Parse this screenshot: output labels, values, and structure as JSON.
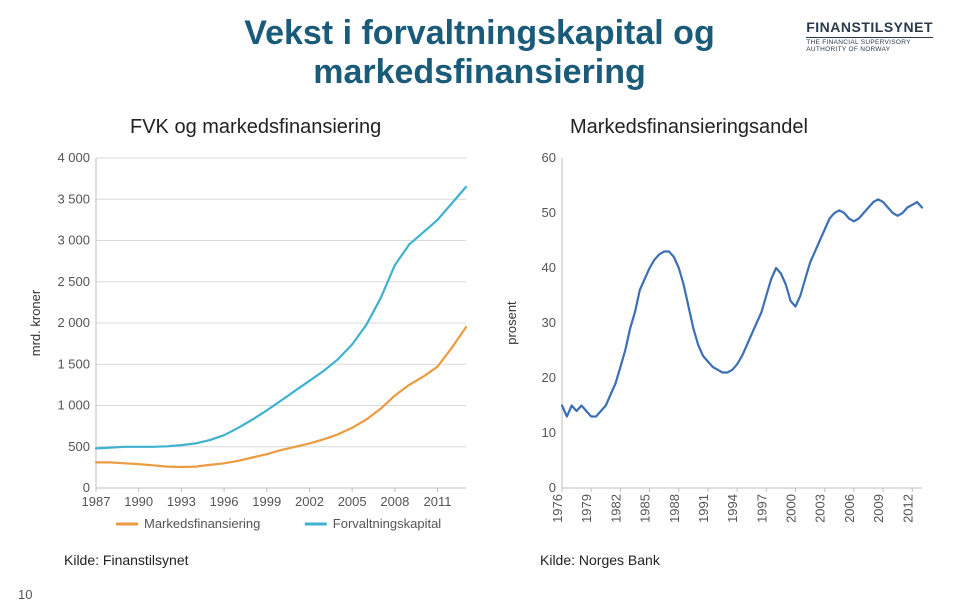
{
  "title_line1": "Vekst i forvaltningskapital og",
  "title_line2": "markedsfinansiering",
  "logo": {
    "main": "FINANSTILSYNET",
    "sub1": "THE FINANCIAL SUPERVISORY",
    "sub2": "AUTHORITY OF NORWAY"
  },
  "page_number": "10",
  "left_chart": {
    "title": "FVK og markedsfinansiering",
    "source": "Kilde: Finanstilsynet",
    "yaxis_label": "mrd. kroner",
    "ylim": [
      0,
      4000
    ],
    "yticks": [
      0,
      500,
      1000,
      1500,
      2000,
      2500,
      3000,
      3500,
      4000
    ],
    "ytick_labels": [
      "0",
      "500",
      "1 000",
      "1 500",
      "2 000",
      "2 500",
      "3 000",
      "3 500",
      "4 000"
    ],
    "xticks": [
      1987,
      1990,
      1993,
      1996,
      1999,
      2002,
      2005,
      2008,
      2011
    ],
    "xtick_labels": [
      "1987",
      "1990",
      "1993",
      "1996",
      "1999",
      "2002",
      "2005",
      "2008",
      "2011"
    ],
    "xlim": [
      1987,
      2013
    ],
    "grid_color": "#d9d9d9",
    "background": "#ffffff",
    "axis_color": "#bfbfbf",
    "tick_fontsize": 13,
    "label_fontsize": 13,
    "line_width": 2.2,
    "series": [
      {
        "name": "Markedsfinansiering",
        "color": "#ed9b40",
        "data": [
          [
            1987,
            310
          ],
          [
            1988,
            310
          ],
          [
            1989,
            300
          ],
          [
            1990,
            290
          ],
          [
            1991,
            275
          ],
          [
            1992,
            260
          ],
          [
            1993,
            255
          ],
          [
            1994,
            260
          ],
          [
            1995,
            280
          ],
          [
            1996,
            300
          ],
          [
            1997,
            330
          ],
          [
            1998,
            370
          ],
          [
            1999,
            410
          ],
          [
            2000,
            460
          ],
          [
            2001,
            500
          ],
          [
            2002,
            540
          ],
          [
            2003,
            590
          ],
          [
            2004,
            650
          ],
          [
            2005,
            730
          ],
          [
            2006,
            830
          ],
          [
            2007,
            960
          ],
          [
            2008,
            1120
          ],
          [
            2009,
            1250
          ],
          [
            2010,
            1350
          ],
          [
            2011,
            1470
          ],
          [
            2012,
            1700
          ],
          [
            2013,
            1950
          ]
        ]
      },
      {
        "name": "Forvaltningskapital",
        "color": "#3fb1d1",
        "data": [
          [
            1987,
            480
          ],
          [
            1988,
            490
          ],
          [
            1989,
            500
          ],
          [
            1990,
            500
          ],
          [
            1991,
            500
          ],
          [
            1992,
            505
          ],
          [
            1993,
            520
          ],
          [
            1994,
            540
          ],
          [
            1995,
            580
          ],
          [
            1996,
            640
          ],
          [
            1997,
            730
          ],
          [
            1998,
            830
          ],
          [
            1999,
            940
          ],
          [
            2000,
            1060
          ],
          [
            2001,
            1180
          ],
          [
            2002,
            1300
          ],
          [
            2003,
            1420
          ],
          [
            2004,
            1560
          ],
          [
            2005,
            1740
          ],
          [
            2006,
            1980
          ],
          [
            2007,
            2300
          ],
          [
            2008,
            2700
          ],
          [
            2009,
            2950
          ],
          [
            2010,
            3100
          ],
          [
            2011,
            3250
          ],
          [
            2012,
            3450
          ],
          [
            2013,
            3650
          ]
        ]
      }
    ],
    "legend": {
      "items": [
        "Markedsfinansiering",
        "Forvaltningskapital"
      ],
      "colors": [
        "#ed9b40",
        "#3fb1d1"
      ],
      "position": "bottom"
    }
  },
  "right_chart": {
    "title": "Markedsfinansieringsandel",
    "source": "Kilde: Norges Bank",
    "yaxis_label": "prosent",
    "ylim": [
      0,
      60
    ],
    "yticks": [
      0,
      10,
      20,
      30,
      40,
      50,
      60
    ],
    "ytick_labels": [
      "0",
      "10",
      "20",
      "30",
      "40",
      "50",
      "60"
    ],
    "xticks": [
      1976,
      1979,
      1982,
      1985,
      1988,
      1991,
      1994,
      1997,
      2000,
      2003,
      2006,
      2009,
      2012
    ],
    "xtick_labels": [
      "1976",
      "1979",
      "1982",
      "1985",
      "1988",
      "1991",
      "1994",
      "1997",
      "2000",
      "2003",
      "2006",
      "2009",
      "2012"
    ],
    "xlim": [
      1976,
      2013
    ],
    "background": "#ffffff",
    "axis_color": "#bfbfbf",
    "tick_fontsize": 13,
    "label_fontsize": 13,
    "line_width": 2.2,
    "series": [
      {
        "name": "Markedsfinansieringsandel",
        "color": "#3d6fb4",
        "data": [
          [
            1976,
            15
          ],
          [
            1976.5,
            13
          ],
          [
            1977,
            15
          ],
          [
            1977.5,
            14
          ],
          [
            1978,
            15
          ],
          [
            1978.5,
            14
          ],
          [
            1979,
            13
          ],
          [
            1979.5,
            13
          ],
          [
            1980,
            14
          ],
          [
            1980.5,
            15
          ],
          [
            1981,
            17
          ],
          [
            1981.5,
            19
          ],
          [
            1982,
            22
          ],
          [
            1982.5,
            25
          ],
          [
            1983,
            29
          ],
          [
            1983.5,
            32
          ],
          [
            1984,
            36
          ],
          [
            1984.5,
            38
          ],
          [
            1985,
            40
          ],
          [
            1985.5,
            41.5
          ],
          [
            1986,
            42.5
          ],
          [
            1986.5,
            43
          ],
          [
            1987,
            43
          ],
          [
            1987.5,
            42
          ],
          [
            1988,
            40
          ],
          [
            1988.5,
            37
          ],
          [
            1989,
            33
          ],
          [
            1989.5,
            29
          ],
          [
            1990,
            26
          ],
          [
            1990.5,
            24
          ],
          [
            1991,
            23
          ],
          [
            1991.5,
            22
          ],
          [
            1992,
            21.5
          ],
          [
            1992.5,
            21
          ],
          [
            1993,
            21
          ],
          [
            1993.5,
            21.5
          ],
          [
            1994,
            22.5
          ],
          [
            1994.5,
            24
          ],
          [
            1995,
            26
          ],
          [
            1995.5,
            28
          ],
          [
            1996,
            30
          ],
          [
            1996.5,
            32
          ],
          [
            1997,
            35
          ],
          [
            1997.5,
            38
          ],
          [
            1998,
            40
          ],
          [
            1998.5,
            39
          ],
          [
            1999,
            37
          ],
          [
            1999.5,
            34
          ],
          [
            2000,
            33
          ],
          [
            2000.5,
            35
          ],
          [
            2001,
            38
          ],
          [
            2001.5,
            41
          ],
          [
            2002,
            43
          ],
          [
            2002.5,
            45
          ],
          [
            2003,
            47
          ],
          [
            2003.5,
            49
          ],
          [
            2004,
            50
          ],
          [
            2004.5,
            50.5
          ],
          [
            2005,
            50
          ],
          [
            2005.5,
            49
          ],
          [
            2006,
            48.5
          ],
          [
            2006.5,
            49
          ],
          [
            2007,
            50
          ],
          [
            2007.5,
            51
          ],
          [
            2008,
            52
          ],
          [
            2008.5,
            52.5
          ],
          [
            2009,
            52
          ],
          [
            2009.5,
            51
          ],
          [
            2010,
            50
          ],
          [
            2010.5,
            49.5
          ],
          [
            2011,
            50
          ],
          [
            2011.5,
            51
          ],
          [
            2012,
            51.5
          ],
          [
            2012.5,
            52
          ],
          [
            2013,
            51
          ]
        ]
      }
    ]
  }
}
